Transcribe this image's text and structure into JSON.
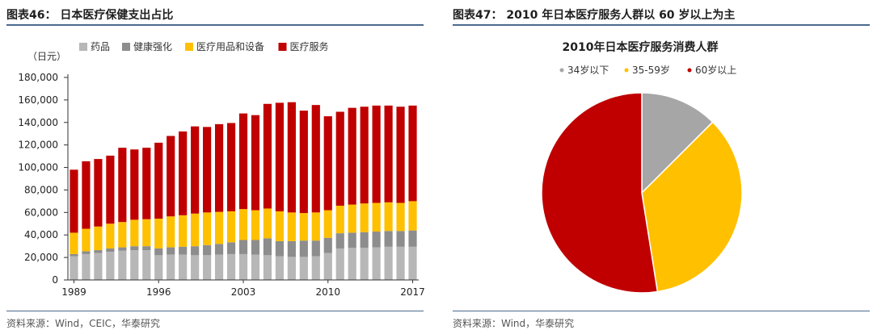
{
  "left_figure": {
    "title": "图表46：  日本医疗保健支出占比",
    "source": "资料来源：Wind，CEIC，华泰研究"
  },
  "right_figure": {
    "title": "图表47：  2010 年日本医疗服务人群以 60 岁以上为主",
    "source": "资料来源：Wind，华泰研究"
  },
  "colors": {
    "rule": "#4a6a8f",
    "drugs": "#b7b7b7",
    "health_dev": "#8d8d8d",
    "med_products": "#ffc000",
    "med_services": "#c00000",
    "age_34_below": "#a6a6a6",
    "age_35_59": "#ffc000",
    "age_60_above": "#c00000"
  },
  "chart_data": [
    {
      "type": "bar",
      "stacked": true,
      "title": "",
      "unit_label": "（日元）",
      "xlabel": "",
      "ylabel": "",
      "ylim": [
        0,
        180000
      ],
      "yticks": [
        "0",
        "20,000",
        "40,000",
        "60,000",
        "80,000",
        "100,000",
        "120,000",
        "140,000",
        "160,000",
        "180,000"
      ],
      "xtick_labels": [
        "1989",
        "1996",
        "2003",
        "2010",
        "2017"
      ],
      "legend_position": "top",
      "grid": false,
      "categories": [
        "1989",
        "1990",
        "1991",
        "1992",
        "1993",
        "1994",
        "1995",
        "1996",
        "1997",
        "1998",
        "1999",
        "2000",
        "2001",
        "2002",
        "2003",
        "2004",
        "2005",
        "2006",
        "2007",
        "2008",
        "2009",
        "2010",
        "2011",
        "2012",
        "2013",
        "2014",
        "2015",
        "2016",
        "2017"
      ],
      "series": [
        {
          "name": "药品",
          "color_key": "drugs",
          "values": [
            21000,
            23000,
            24000,
            25000,
            26000,
            26500,
            26500,
            22000,
            22500,
            22500,
            22000,
            22000,
            22500,
            23000,
            23000,
            22500,
            22000,
            21000,
            20500,
            20500,
            21000,
            24000,
            28000,
            28500,
            28500,
            29000,
            29500,
            29500,
            29500
          ]
        },
        {
          "name": "健康强化",
          "color_key": "health_dev",
          "values": [
            2000,
            2500,
            2500,
            3000,
            3000,
            3500,
            3500,
            6000,
            6500,
            7000,
            8000,
            9000,
            9500,
            10500,
            12500,
            13000,
            15000,
            13500,
            14000,
            14500,
            14000,
            13500,
            13500,
            13500,
            14000,
            14000,
            14000,
            14000,
            14500
          ]
        },
        {
          "name": "医疗用品和设备",
          "color_key": "med_products",
          "values": [
            19000,
            20000,
            21000,
            22000,
            22500,
            23500,
            24000,
            26500,
            27500,
            28000,
            29000,
            29000,
            28500,
            27500,
            27500,
            26500,
            26500,
            26500,
            25500,
            24500,
            25000,
            24500,
            24500,
            25000,
            25500,
            25500,
            25500,
            25000,
            26000
          ]
        },
        {
          "name": "医疗服务",
          "color_key": "med_services",
          "values": [
            56000,
            60000,
            60000,
            60500,
            66000,
            62500,
            63500,
            67500,
            71500,
            74500,
            77500,
            76000,
            78000,
            78500,
            85000,
            84500,
            93000,
            96500,
            98000,
            91000,
            95500,
            83500,
            83500,
            86000,
            86000,
            86500,
            86000,
            85500,
            85000
          ]
        }
      ]
    },
    {
      "type": "pie",
      "title": "2010年日本医疗服务消费人群",
      "legend_position": "top",
      "categories": [
        "34岁以下",
        "35-59岁",
        "60岁以上"
      ],
      "color_keys": [
        "age_34_below",
        "age_35_59",
        "age_60_above"
      ],
      "values": [
        12.5,
        35.0,
        52.5
      ]
    }
  ]
}
